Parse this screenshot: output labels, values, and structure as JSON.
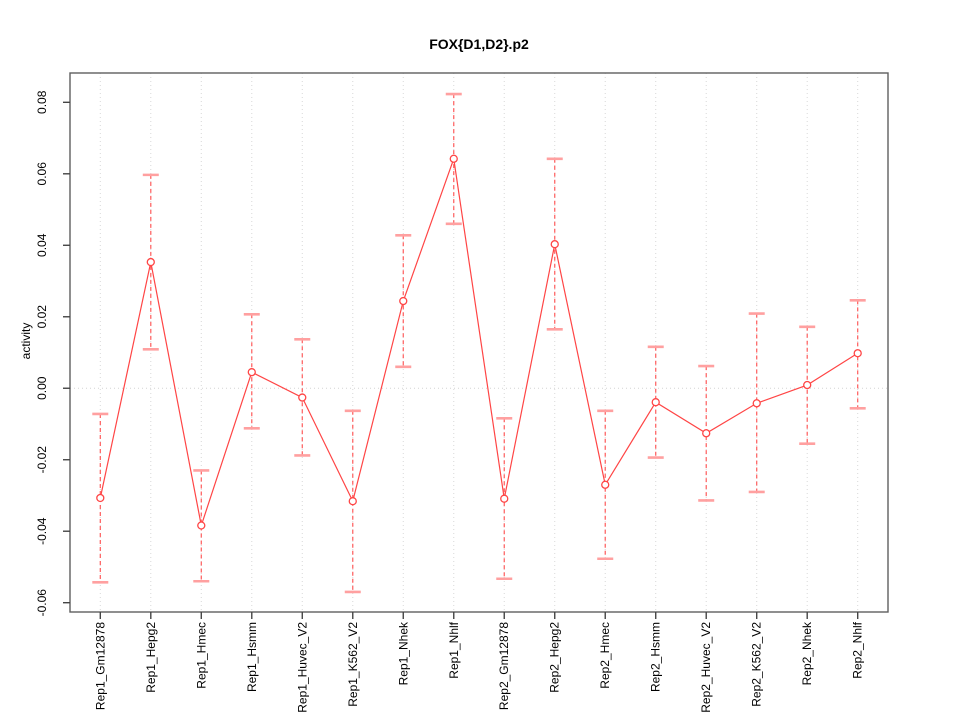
{
  "chart_data": {
    "type": "line",
    "title": "FOX{D1,D2}.p2",
    "xlabel": "",
    "ylabel": "activity",
    "categories": [
      "Rep1_Gm12878",
      "Rep1_Hepg2",
      "Rep1_Hmec",
      "Rep1_Hsmm",
      "Rep1_Huvec_V2",
      "Rep1_K562_V2",
      "Rep1_Nhek",
      "Rep1_Nhlf",
      "Rep2_Gm12878",
      "Rep2_Hepg2",
      "Rep2_Hmec",
      "Rep2_Hsmm",
      "Rep2_Huvec_V2",
      "Rep2_K562_V2",
      "Rep2_Nhek",
      "Rep2_Nhlf"
    ],
    "series": [
      {
        "name": "activity",
        "values": [
          -0.0307,
          0.0353,
          -0.0384,
          0.0045,
          -0.0026,
          -0.0316,
          0.0244,
          0.0642,
          -0.0309,
          0.0403,
          -0.027,
          -0.0039,
          -0.0126,
          -0.0042,
          0.0009,
          0.0098
        ],
        "error_low": [
          -0.0543,
          0.0109,
          -0.054,
          -0.0112,
          -0.0188,
          -0.057,
          0.006,
          0.046,
          -0.0533,
          0.0165,
          -0.0477,
          -0.0194,
          -0.0314,
          -0.029,
          -0.0155,
          -0.0056
        ],
        "error_high": [
          -0.0072,
          0.0597,
          -0.023,
          0.0207,
          0.0137,
          -0.0063,
          0.0428,
          0.0823,
          -0.0084,
          0.0642,
          -0.0063,
          0.0116,
          0.0062,
          0.0209,
          0.0172,
          0.0246
        ]
      }
    ],
    "ylim": [
      -0.06,
      0.08
    ],
    "yticks": [
      -0.06,
      -0.04,
      -0.02,
      0.0,
      0.02,
      0.04,
      0.06,
      0.08
    ],
    "ytick_labels": [
      "-0.06",
      "-0.04",
      "-0.02",
      "0.00",
      "0.02",
      "0.04",
      "0.06",
      "0.08"
    ],
    "grid": "dotted vertical line at every category; dotted horizontal line at y=0 only",
    "legend": "none",
    "tick_label_rotation": "vertical (reads bottom-to-top)",
    "marker": "open-circle",
    "error_bar_style": "dashed vertical line with solid caps",
    "colors": {
      "line": "#ff4545",
      "marker": "#ff4545",
      "error_line": "#ff5c5c",
      "error_cap": "#ffa0a0",
      "grid": "#d8d8d8",
      "zero_line": "#d4d4d4",
      "frame": "#5f5f5f",
      "tick": "#454545",
      "text": "#000000",
      "background": "#ffffff"
    }
  }
}
